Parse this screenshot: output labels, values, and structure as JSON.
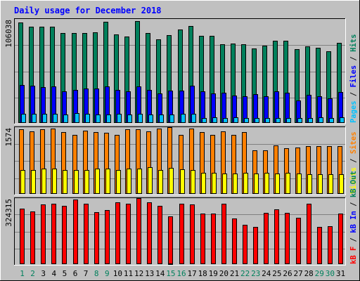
{
  "chart_data": {
    "type": "bar",
    "title": "Daily usage for December 2018",
    "days": [
      "1",
      "2",
      "3",
      "4",
      "5",
      "6",
      "7",
      "8",
      "9",
      "10",
      "11",
      "12",
      "13",
      "14",
      "15",
      "16",
      "17",
      "18",
      "19",
      "20",
      "21",
      "22",
      "23",
      "24",
      "25",
      "26",
      "27",
      "28",
      "29",
      "30",
      "31"
    ],
    "weekend_days": [
      1,
      2,
      8,
      9,
      15,
      16,
      22,
      23,
      29,
      30
    ],
    "colors": {
      "title": "#0000ff",
      "weekday_label": "#000000",
      "weekend_label": "#00805c",
      "hits": "#00805c",
      "files": "#0000ff",
      "pages": "#00c0ff",
      "visits": "#ffff00",
      "sites": "#ff8000",
      "kbytes": "#ff0000",
      "kb_out": "#00805c",
      "kb_in": "#0000ff",
      "panel_bg": "#c0c0c0"
    },
    "panels": [
      {
        "name": "usage",
        "max_label": "106038",
        "ylim": [
          0,
          106038
        ],
        "legend": [
          "Pages",
          "Files",
          "Hits"
        ],
        "series": [
          {
            "name": "Hits",
            "values": [
              102500,
              98000,
              98000,
              98500,
              92000,
              92000,
              91500,
              92500,
              103500,
              90000,
              88000,
              104000,
              92000,
              85000,
              89500,
              95500,
              99000,
              89000,
              89000,
              80000,
              81000,
              80000,
              76000,
              79000,
              84000,
              84000,
              75000,
              78000,
              77000,
              73000,
              82000
            ]
          },
          {
            "name": "Files",
            "values": [
              39000,
              38000,
              36500,
              37000,
              32500,
              33500,
              35000,
              35000,
              37500,
              33500,
              32000,
              37000,
              33500,
              30000,
              33000,
              33000,
              38000,
              32000,
              30000,
              31000,
              28000,
              27500,
              29500,
              27000,
              32000,
              31000,
              23000,
              29000,
              27500,
              25000,
              31500
            ]
          },
          {
            "name": "Pages",
            "values": [
              9300,
              9000,
              9100,
              9200,
              8800,
              9800,
              9600,
              8600,
              8900,
              9400,
              8800,
              9400,
              8600,
              8300,
              8800,
              9000,
              9000,
              5300,
              5600,
              5300,
              5500,
              5000,
              5000,
              4800,
              5000,
              5100,
              4800,
              5000,
              5400,
              5200,
              5500
            ]
          }
        ]
      },
      {
        "name": "visits-sites",
        "max_label": "1574",
        "ylim": [
          0,
          1574
        ],
        "legend": [
          "Visits",
          "Sites"
        ],
        "series": [
          {
            "name": "Sites",
            "values": [
              1520,
              1480,
              1530,
              1540,
              1460,
              1400,
              1490,
              1450,
              1440,
              1400,
              1520,
              1520,
              1480,
              1540,
              1570,
              1400,
              1540,
              1450,
              1400,
              1480,
              1390,
              1460,
              1020,
              1020,
              1150,
              1080,
              1090,
              1120,
              1120,
              1120,
              1120
            ]
          },
          {
            "name": "Visits",
            "values": [
              560,
              570,
              600,
              600,
              570,
              560,
              560,
              590,
              590,
              570,
              590,
              600,
              630,
              570,
              620,
              580,
              570,
              500,
              500,
              480,
              480,
              490,
              480,
              490,
              480,
              490,
              480,
              470,
              460,
              460,
              470
            ]
          }
        ]
      },
      {
        "name": "kbytes",
        "max_label": "324315",
        "ylim": [
          0,
          324315
        ],
        "legend": [
          "kB F",
          "kB In",
          "kB Out"
        ],
        "series": [
          {
            "name": "kB F",
            "values": [
              272000,
              260000,
              294000,
              295000,
              288000,
              317000,
              297000,
              254000,
              265000,
              302000,
              297000,
              323000,
              305000,
              288000,
              233000,
              295000,
              292000,
              250000,
              247000,
              295000,
              225000,
              194000,
              182000,
              252000,
              268000,
              253000,
              226000,
              296000,
              184000,
              186000,
              249000
            ]
          },
          {
            "name": "kB In",
            "values": [
              0,
              0,
              0,
              0,
              0,
              0,
              0,
              0,
              0,
              0,
              0,
              0,
              0,
              0,
              3000,
              0,
              0,
              0,
              0,
              0,
              0,
              0,
              0,
              0,
              0,
              0,
              0,
              0,
              0,
              0,
              0
            ]
          }
        ]
      }
    ]
  }
}
